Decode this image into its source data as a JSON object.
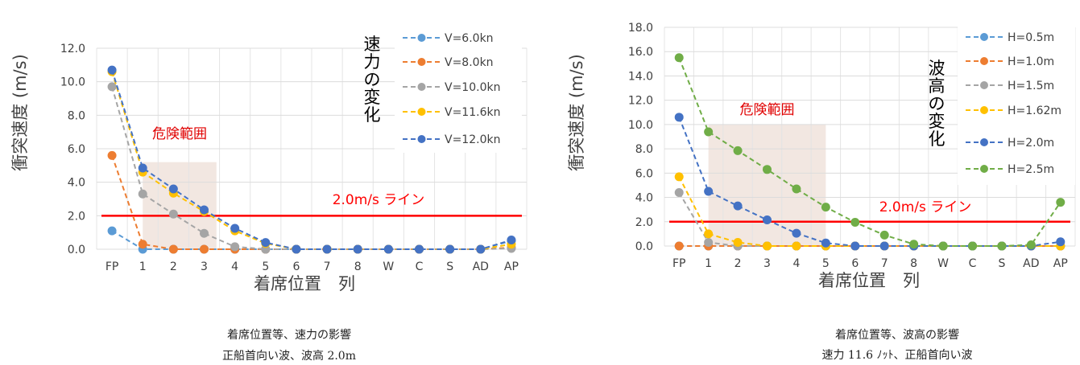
{
  "chart_data": [
    {
      "type": "line",
      "ylabel": "衝突速度 (m/s)",
      "xlabel": "着席位置　列",
      "categories": [
        "FP",
        "1",
        "2",
        "3",
        "4",
        "5",
        "6",
        "7",
        "8",
        "W",
        "C",
        "S",
        "AD",
        "AP"
      ],
      "yticks": [
        "0.0",
        "2.0",
        "4.0",
        "6.0",
        "8.0",
        "10.0",
        "12.0"
      ],
      "ylim": [
        0,
        12
      ],
      "grid": true,
      "legend_position": "top-right",
      "series": [
        {
          "name": "V=6.0kn",
          "color": "#5B9BD5",
          "values": [
            1.1,
            0,
            0,
            0,
            0,
            0,
            0,
            0,
            0,
            0,
            0,
            0,
            0,
            0.5
          ]
        },
        {
          "name": "V=8.0kn",
          "color": "#ED7D31",
          "values": [
            5.6,
            0.3,
            0,
            0,
            0,
            0,
            0,
            0,
            0,
            0,
            0,
            0,
            0,
            0.1
          ]
        },
        {
          "name": "V=10.0kn",
          "color": "#A5A5A5",
          "values": [
            9.7,
            3.3,
            2.1,
            0.95,
            0.15,
            0,
            0,
            0,
            0,
            0,
            0,
            0,
            0,
            0.05
          ]
        },
        {
          "name": "V=11.6kn",
          "color": "#FFC000",
          "values": [
            10.6,
            4.6,
            3.35,
            2.25,
            1.1,
            0.35,
            0,
            0,
            0,
            0,
            0,
            0,
            0,
            0.3
          ]
        },
        {
          "name": "V=12.0kn",
          "color": "#4472C4",
          "values": [
            10.7,
            4.85,
            3.6,
            2.35,
            1.25,
            0.4,
            0,
            0,
            0,
            0,
            0,
            0,
            0,
            0.55
          ]
        }
      ],
      "reference_line": {
        "value": 2.0,
        "label": "2.0m/s ライン",
        "color": "#FF0000"
      },
      "danger_zone": {
        "label": "危険範囲",
        "x_from": 1,
        "x_to": 3.4,
        "y_from": 0,
        "y_to": 5.2
      },
      "side_label": "速力の変化",
      "caption": [
        "着席位置等、速力の影響",
        "正船首向い波、波高 2.0m"
      ]
    },
    {
      "type": "line",
      "ylabel": "衝突速度 (m/s)",
      "xlabel": "着席位置　列",
      "categories": [
        "FP",
        "1",
        "2",
        "3",
        "4",
        "5",
        "6",
        "7",
        "8",
        "W",
        "C",
        "S",
        "AD",
        "AP"
      ],
      "yticks": [
        "0.0",
        "2.0",
        "4.0",
        "6.0",
        "8.0",
        "10.0",
        "12.0",
        "14.0",
        "16.0",
        "18.0"
      ],
      "ylim": [
        0,
        18
      ],
      "grid": true,
      "legend_position": "top-right",
      "series": [
        {
          "name": "H=0.5m",
          "color": "#5B9BD5",
          "values": [
            0,
            0,
            0,
            0,
            0,
            0,
            0,
            0,
            0,
            0,
            0,
            0,
            0,
            0
          ]
        },
        {
          "name": "H=1.0m",
          "color": "#ED7D31",
          "values": [
            0,
            0,
            0,
            0,
            0,
            0,
            0,
            0,
            0,
            0,
            0,
            0,
            0,
            0
          ]
        },
        {
          "name": "H=1.5m",
          "color": "#A5A5A5",
          "values": [
            4.4,
            0.3,
            0,
            0,
            0,
            0,
            0,
            0,
            0,
            0,
            0,
            0,
            0,
            0
          ]
        },
        {
          "name": "H=1.62m",
          "color": "#FFC000",
          "values": [
            5.7,
            1.0,
            0.3,
            0,
            0,
            0,
            0,
            0,
            0,
            0,
            0,
            0,
            0,
            0
          ]
        },
        {
          "name": "H=2.0m",
          "color": "#4472C4",
          "values": [
            10.6,
            4.5,
            3.3,
            2.15,
            1.05,
            0.25,
            0,
            0,
            0,
            0,
            0,
            0,
            0,
            0.35
          ]
        },
        {
          "name": "H=2.5m",
          "color": "#70AD47",
          "values": [
            15.5,
            9.4,
            7.85,
            6.3,
            4.7,
            3.2,
            1.95,
            0.9,
            0.15,
            0,
            0,
            0,
            0.1,
            3.6
          ]
        }
      ],
      "reference_line": {
        "value": 2.0,
        "label": "2.0m/s ライン",
        "color": "#FF0000"
      },
      "danger_zone": {
        "label": "危険範囲",
        "x_from": 1,
        "x_to": 5,
        "y_from": 0,
        "y_to": 10
      },
      "side_label": "波高の変化",
      "caption": [
        "着席位置等、波高の影響",
        "速力 11.6 ﾉｯﾄ、正船首向い波"
      ]
    }
  ]
}
